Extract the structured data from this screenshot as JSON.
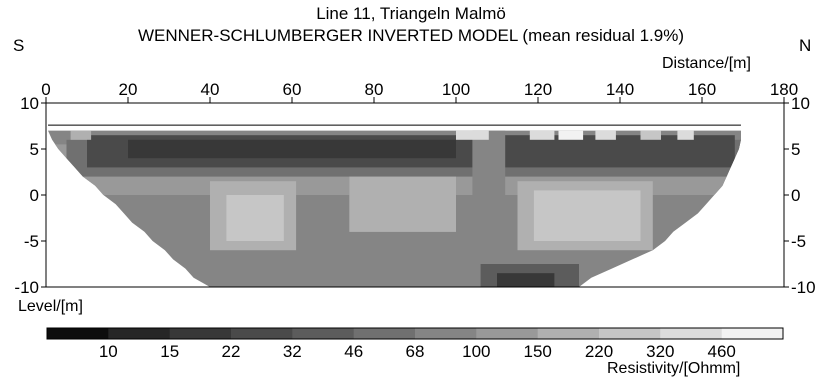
{
  "chart_data": {
    "type": "heatmap",
    "title": "Line 11, Triangeln Malmö",
    "subtitle": "WENNER-SCHLUMBERGER INVERTED MODEL (mean residual 1.9%)",
    "direction_labels": {
      "left": "S",
      "right": "N"
    },
    "xlabel": "Distance/[m]",
    "ylabel": "Level/[m]",
    "xlim": [
      0,
      180
    ],
    "ylim": [
      -10,
      10
    ],
    "x_ticks": [
      "0",
      "20",
      "40",
      "60",
      "80",
      "100",
      "120",
      "140",
      "160",
      "180"
    ],
    "y_ticks": [
      "10",
      "5",
      "0",
      "-5",
      "-10"
    ],
    "colorbar": {
      "label": "Resistivity/[Ohmm]",
      "values": [
        "10",
        "15",
        "22",
        "32",
        "46",
        "68",
        "100",
        "150",
        "220",
        "320",
        "460"
      ],
      "colors": [
        "#0d0d0d",
        "#262626",
        "#383838",
        "#4a4a4a",
        "#5c5c5c",
        "#707070",
        "#858585",
        "#999999",
        "#b0b0b0",
        "#c6c6c6",
        "#dcdcdc",
        "#f2f2f2"
      ]
    },
    "model": {
      "surface_level": 7,
      "section_outline": [
        [
          0.5,
          7
        ],
        [
          1.5,
          6
        ],
        [
          3,
          5
        ],
        [
          5,
          4
        ],
        [
          7,
          3
        ],
        [
          9,
          2
        ],
        [
          12,
          1
        ],
        [
          14,
          0
        ],
        [
          17,
          -1
        ],
        [
          19,
          -2
        ],
        [
          21,
          -3
        ],
        [
          24,
          -4
        ],
        [
          26,
          -5
        ],
        [
          29,
          -6
        ],
        [
          31,
          -7
        ],
        [
          34,
          -8
        ],
        [
          36,
          -9
        ],
        [
          40,
          -10
        ],
        [
          130,
          -10
        ],
        [
          133,
          -9
        ],
        [
          138,
          -8
        ],
        [
          143,
          -7
        ],
        [
          148,
          -6
        ],
        [
          151,
          -5
        ],
        [
          153,
          -4
        ],
        [
          156,
          -3
        ],
        [
          159,
          -2
        ],
        [
          161,
          -1
        ],
        [
          163,
          0
        ],
        [
          165,
          1
        ],
        [
          166,
          2
        ],
        [
          167,
          3
        ],
        [
          168,
          4
        ],
        [
          169,
          5
        ],
        [
          169.5,
          6
        ],
        [
          169.5,
          7
        ]
      ],
      "regions": [
        {
          "kind": "rect",
          "x": [
            0,
            170
          ],
          "y": [
            -10,
            7.5
          ],
          "value": "68"
        },
        {
          "kind": "rect",
          "x": [
            0,
            170
          ],
          "y": [
            0,
            5.5
          ],
          "value": "100"
        },
        {
          "kind": "rect",
          "x": [
            5,
            170
          ],
          "y": [
            2,
            6
          ],
          "value": "46"
        },
        {
          "kind": "rect",
          "x": [
            10,
            168
          ],
          "y": [
            3,
            6.5
          ],
          "value": "22"
        },
        {
          "kind": "rect",
          "x": [
            20,
            100
          ],
          "y": [
            4,
            6
          ],
          "value": "15"
        },
        {
          "kind": "rect",
          "x": [
            104,
            112
          ],
          "y": [
            -10,
            7
          ],
          "value": "68"
        },
        {
          "kind": "rect",
          "x": [
            74,
            100
          ],
          "y": [
            -4,
            0
          ],
          "value": "150"
        },
        {
          "kind": "rect",
          "x": [
            40,
            61
          ],
          "y": [
            -6,
            1.5
          ],
          "value": "150"
        },
        {
          "kind": "rect",
          "x": [
            44,
            58
          ],
          "y": [
            -5,
            0
          ],
          "value": "220"
        },
        {
          "kind": "rect",
          "x": [
            74,
            100
          ],
          "y": [
            -4,
            2
          ],
          "value": "150"
        },
        {
          "kind": "rect",
          "x": [
            115,
            148
          ],
          "y": [
            -6,
            1.5
          ],
          "value": "150"
        },
        {
          "kind": "rect",
          "x": [
            119,
            145
          ],
          "y": [
            -5,
            0.5
          ],
          "value": "220"
        },
        {
          "kind": "rect",
          "x": [
            106,
            130
          ],
          "y": [
            -10,
            -7.5
          ],
          "value": "32"
        },
        {
          "kind": "rect",
          "x": [
            110,
            124
          ],
          "y": [
            -10,
            -8.5
          ],
          "value": "15"
        },
        {
          "kind": "rect",
          "x": [
            100,
            108
          ],
          "y": [
            6,
            7
          ],
          "value": "320"
        },
        {
          "kind": "rect",
          "x": [
            118,
            124
          ],
          "y": [
            6,
            7
          ],
          "value": "320"
        },
        {
          "kind": "rect",
          "x": [
            125,
            131
          ],
          "y": [
            6,
            7
          ],
          "value": "460"
        },
        {
          "kind": "rect",
          "x": [
            134,
            139
          ],
          "y": [
            6,
            7
          ],
          "value": "320"
        },
        {
          "kind": "rect",
          "x": [
            145,
            150
          ],
          "y": [
            6,
            7
          ],
          "value": "220"
        },
        {
          "kind": "rect",
          "x": [
            154,
            158
          ],
          "y": [
            6,
            7
          ],
          "value": "320"
        },
        {
          "kind": "rect",
          "x": [
            6,
            11
          ],
          "y": [
            6,
            7
          ],
          "value": "150"
        }
      ]
    }
  }
}
